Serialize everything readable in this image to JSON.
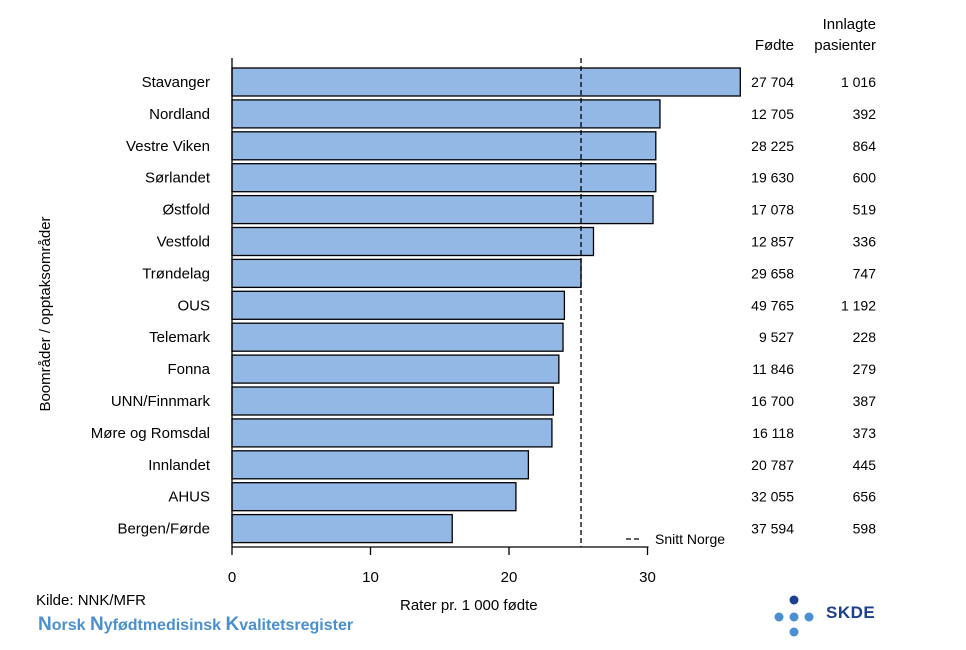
{
  "chart_data": {
    "type": "bar",
    "orientation": "horizontal",
    "categories": [
      "Stavanger",
      "Nordland",
      "Vestre Viken",
      "Sørlandet",
      "Østfold",
      "Vestfold",
      "Trøndelag",
      "OUS",
      "Telemark",
      "Fonna",
      "UNN/Finnmark",
      "Møre og Romsdal",
      "Innlandet",
      "AHUS",
      "Bergen/Førde"
    ],
    "values": [
      36.7,
      30.9,
      30.6,
      30.6,
      30.4,
      26.1,
      25.2,
      24.0,
      23.9,
      23.6,
      23.2,
      23.1,
      21.4,
      20.5,
      15.9
    ],
    "reference_line": {
      "value": 25.2,
      "label": "Snitt Norge",
      "style": "dashed"
    },
    "xlabel": "Rater pr. 1 000 fødte",
    "ylabel": "Boområder / opptaksområder",
    "xlim": [
      0,
      40
    ],
    "xticks": [
      0,
      10,
      20,
      30
    ],
    "bar_color": "#93b8e6",
    "bar_edge_color": "#000000",
    "grid": false,
    "legend_position": "bottom-right",
    "table": {
      "headers": {
        "fodte": "Fødte",
        "innlagte_line1": "Innlagte",
        "innlagte_line2": "pasienter"
      },
      "fodte": [
        "27 704",
        "12 705",
        "28 225",
        "19 630",
        "17 078",
        "12 857",
        "29 658",
        "49 765",
        "9 527",
        "11 846",
        "16 700",
        "16 118",
        "20 787",
        "32 055",
        "37 594"
      ],
      "innlagte": [
        "1 016",
        "392",
        "864",
        "600",
        "519",
        "336",
        "747",
        "1 192",
        "228",
        "279",
        "387",
        "373",
        "445",
        "656",
        "598"
      ]
    }
  },
  "footer": {
    "source": "Kilde: NNK/MFR",
    "registry_parts": [
      {
        "cap": "N",
        "rest": "orsk "
      },
      {
        "cap": "N",
        "rest": "yfødtmedisinsk "
      },
      {
        "cap": "K",
        "rest": "valitetsregister"
      }
    ],
    "logo_text": "SKDE",
    "logo_color": "#1d3f8f",
    "logo_dot_color": "#4a8fd0"
  }
}
